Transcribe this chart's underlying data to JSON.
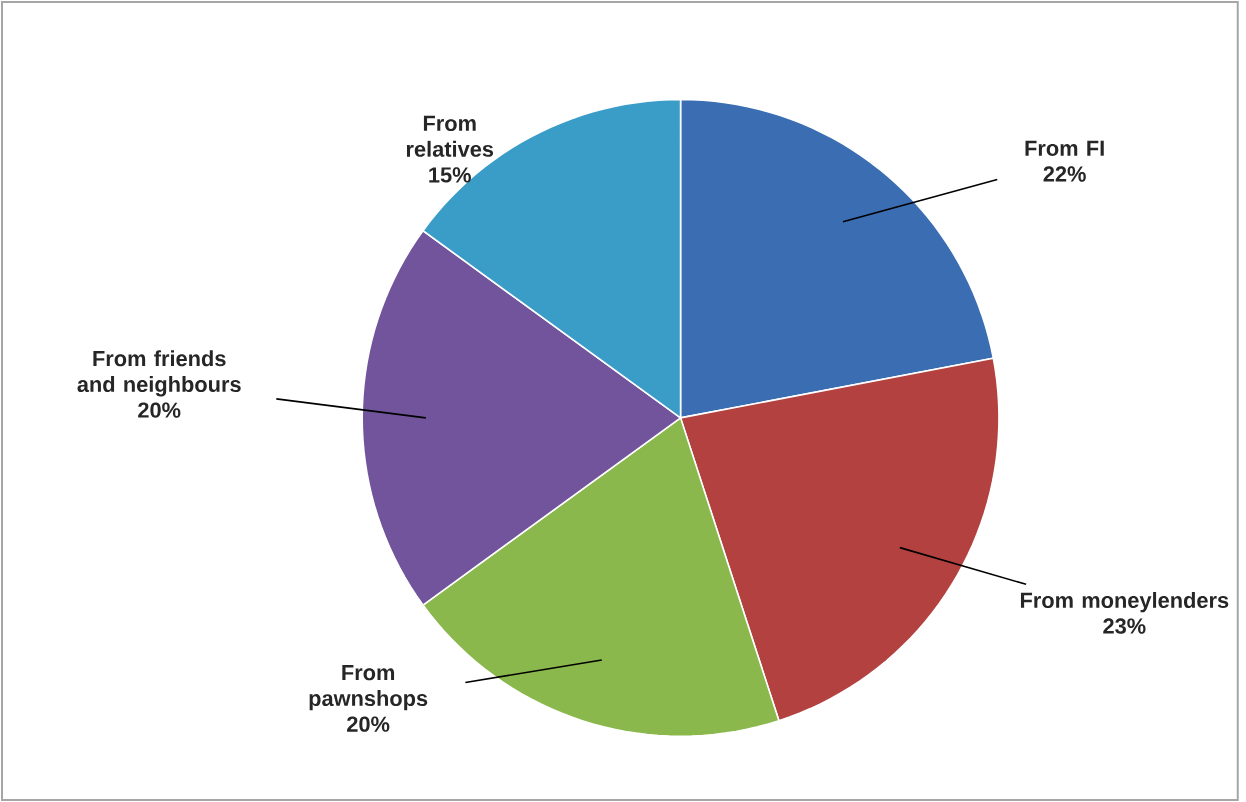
{
  "chart_data": {
    "type": "pie",
    "categories": [
      "From FI",
      "From moneylenders",
      "From pawnshops",
      "From friends and neighbours",
      "From relatives"
    ],
    "values": [
      22,
      23,
      20,
      20,
      15
    ],
    "value_labels": [
      "22%",
      "23%",
      "20%",
      "20%",
      "15%"
    ],
    "colors": [
      "#3b6db3",
      "#b2413f",
      "#8ab84d",
      "#71549c",
      "#3a9dc8"
    ]
  }
}
